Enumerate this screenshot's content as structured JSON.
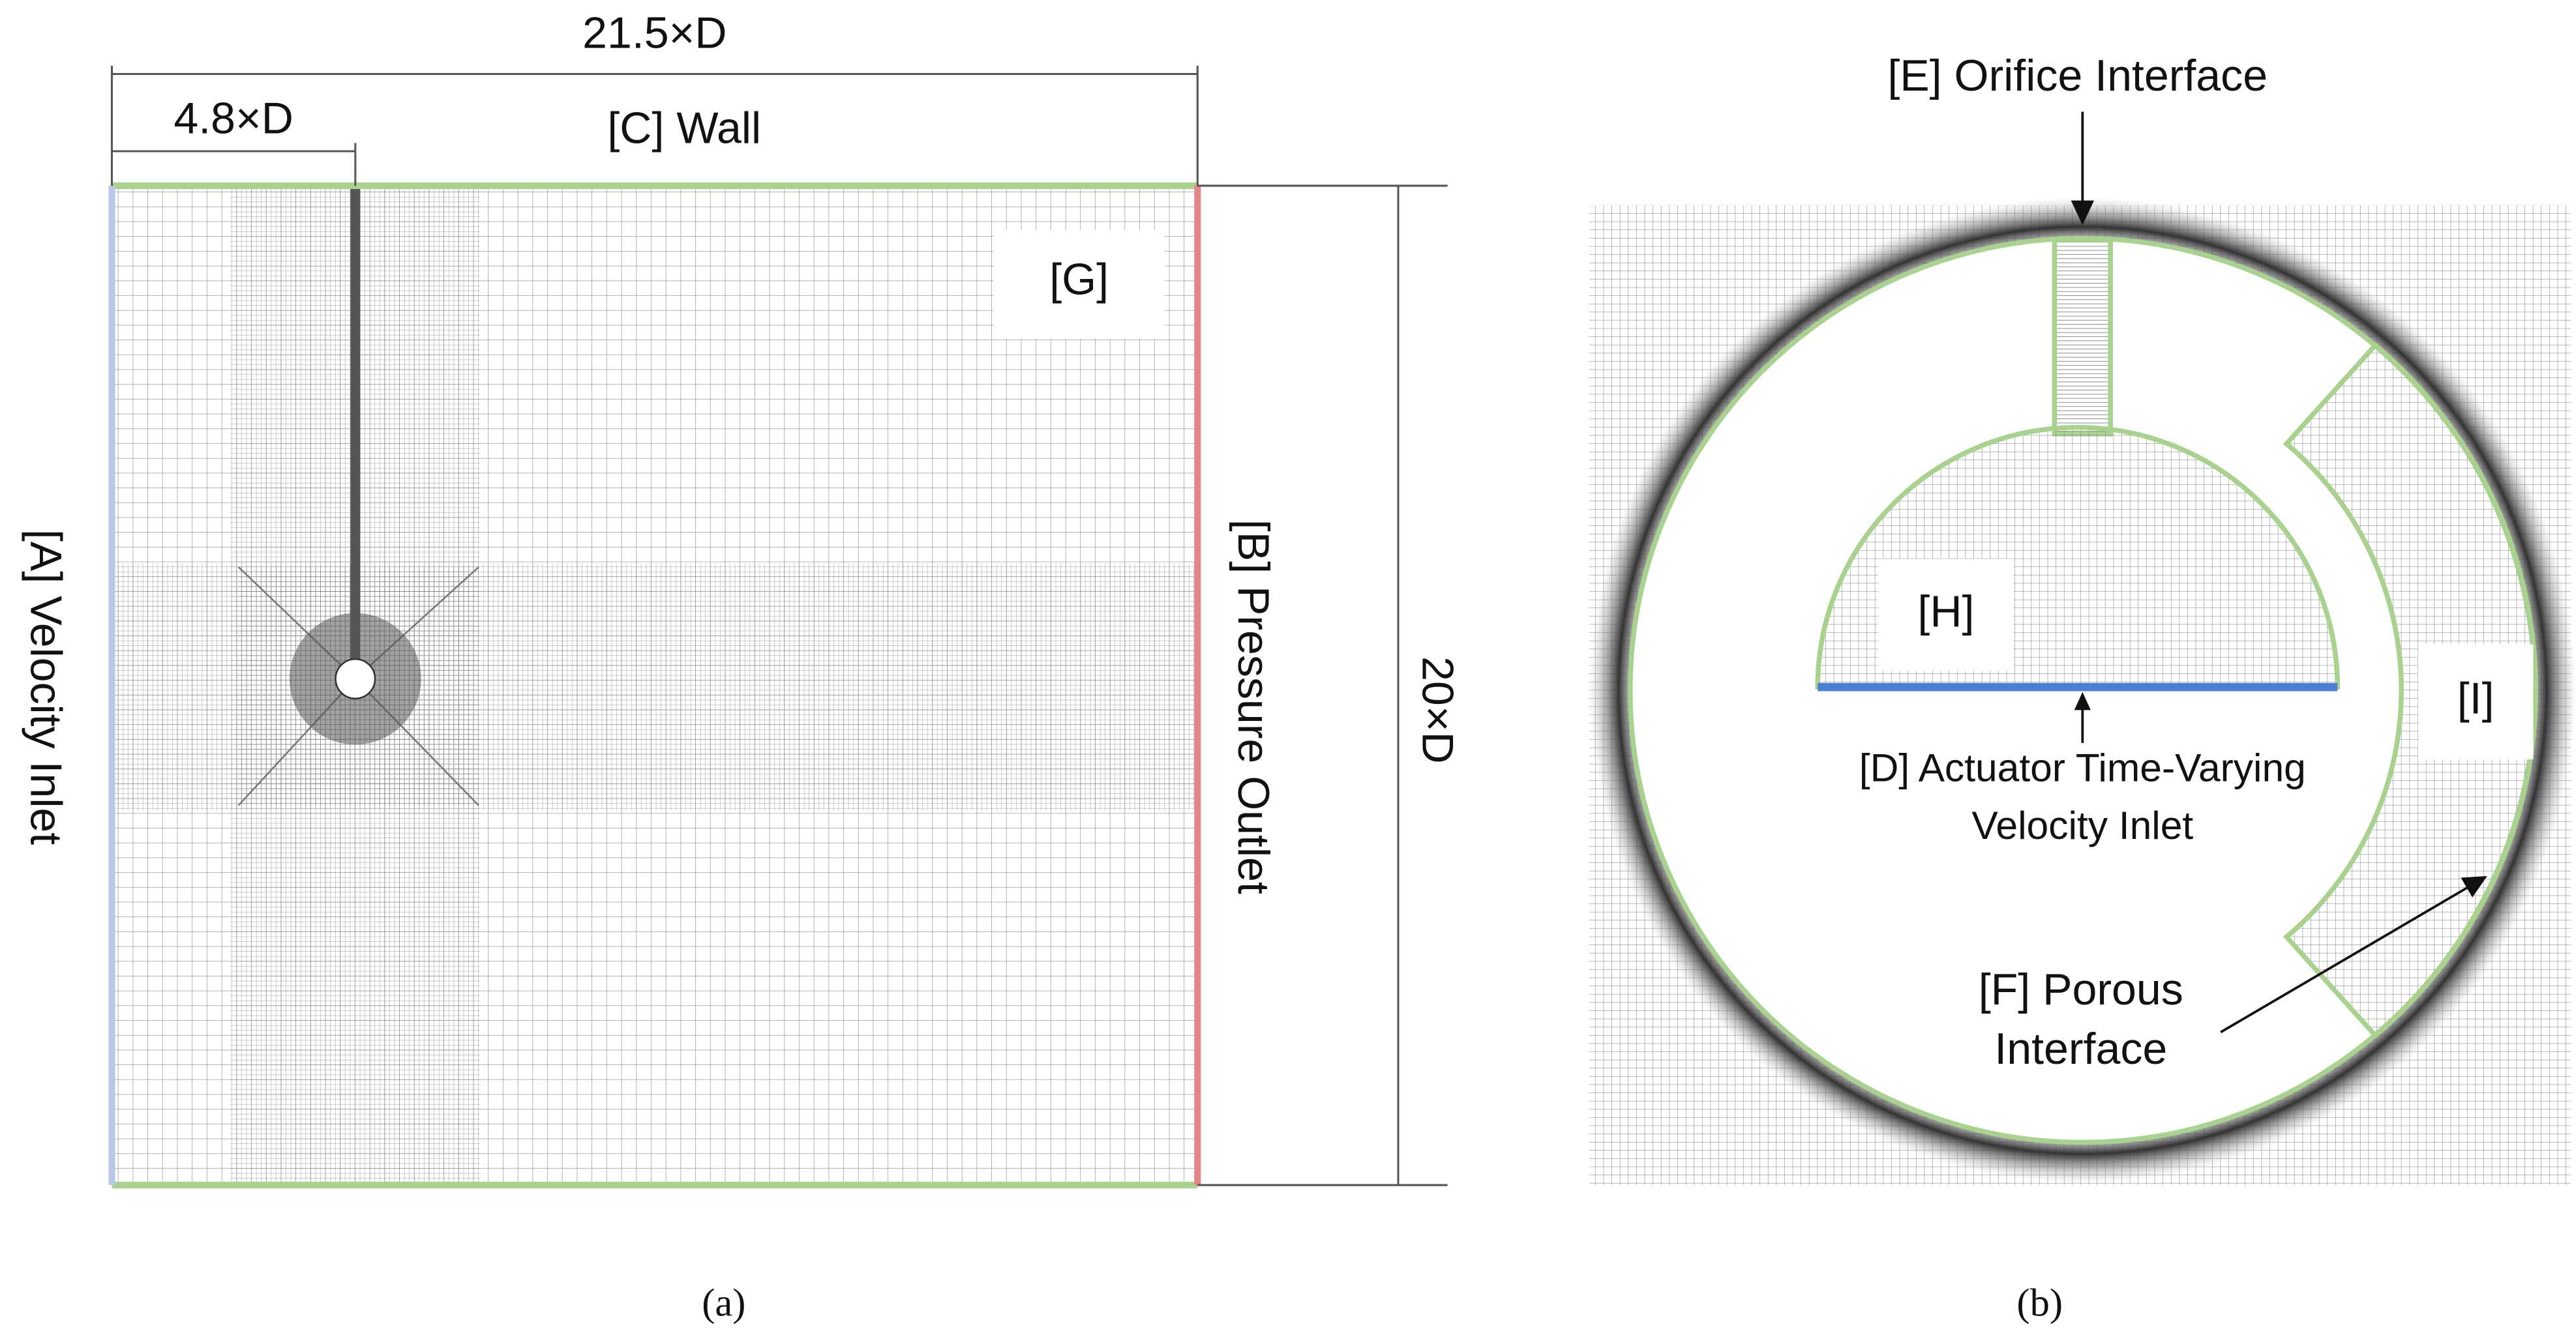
{
  "panel_a": {
    "dim_width": "21.5×D",
    "dim_offset": "4.8×D",
    "wall": "[C] Wall",
    "zone": "[G]",
    "inlet": "[A] Velocity Inlet",
    "outlet": "[B] Pressure Outlet",
    "dim_height": "20×D",
    "caption": "(a)"
  },
  "panel_b": {
    "orifice": "[E] Orifice Interface",
    "zone_h": "[H]",
    "zone_i": "[I]",
    "actuator": [
      "[D] Actuator Time-Varying",
      "Velocity Inlet"
    ],
    "porous": [
      "[F] Porous",
      "Interface"
    ],
    "caption": "(b)"
  }
}
